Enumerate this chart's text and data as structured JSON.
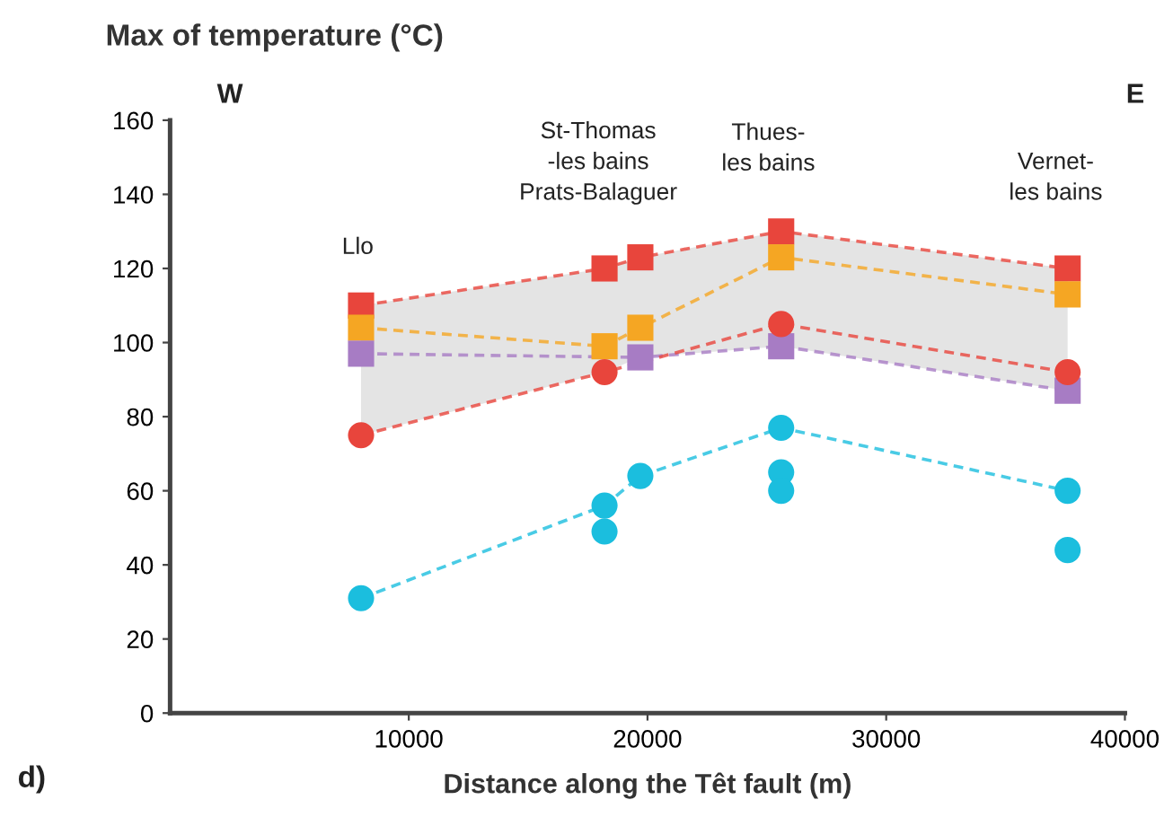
{
  "chart_data": {
    "type": "line",
    "title": "Max of temperature (°C)",
    "xlabel": "Distance along the Têt fault (m)",
    "x": [
      8000,
      18200,
      19700,
      25600,
      37600
    ],
    "series": [
      {
        "color": "#e8453c",
        "values": [
          110,
          120,
          123,
          130,
          120
        ],
        "marker": "square",
        "lower": [
          75,
          92,
          96,
          99,
          87
        ],
        "upper": [
          110,
          120,
          123,
          130,
          120
        ]
      },
      {
        "color": "#f5a623",
        "values": [
          104,
          99,
          104,
          123,
          113
        ],
        "marker": "square"
      },
      {
        "color": "#a77cc4",
        "values": [
          97,
          null,
          96,
          99,
          87
        ],
        "marker": "square"
      },
      {
        "color": "#e8453c",
        "values": [
          75,
          92,
          null,
          105,
          92
        ],
        "marker": "circle"
      },
      {
        "color": "#1bbede",
        "values": [
          31,
          56,
          64,
          77,
          60
        ],
        "marker": "circle"
      },
      {
        "type": "scatter",
        "color": "#1bbede",
        "x": [
          18200,
          25600,
          25600,
          37600
        ],
        "values": [
          49,
          65,
          60,
          44
        ],
        "marker": "circle"
      }
    ],
    "xlim": [
      0,
      40000
    ],
    "xticks": [
      10000,
      20000,
      30000,
      40000
    ],
    "ylim": [
      0,
      160
    ],
    "yticks": [
      0,
      20,
      40,
      60,
      80,
      100,
      120,
      140,
      160
    ],
    "line_style": "dashed",
    "grid": false,
    "annotations": [
      "Llo",
      "St-Thomas\n-les bains\nPrats-Balaguer",
      "Thues-\nles bains",
      "Vernet-\nles bains",
      "W",
      "E",
      "d)"
    ]
  }
}
